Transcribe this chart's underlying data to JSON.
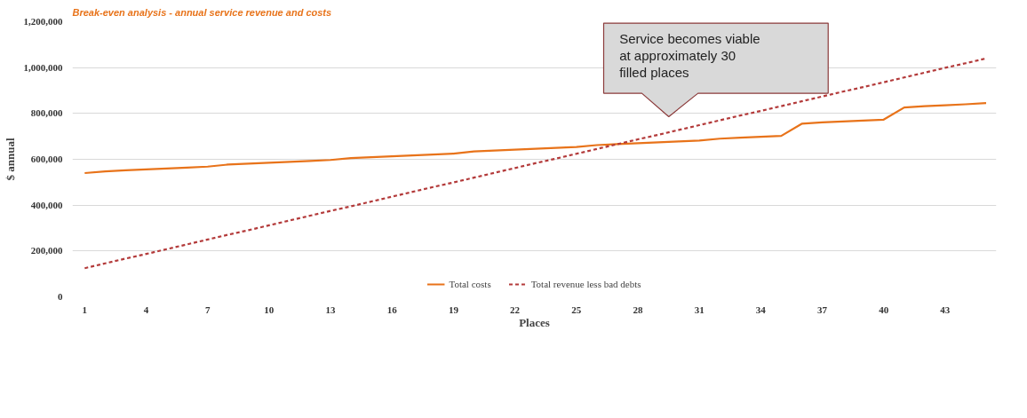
{
  "chart_data": {
    "type": "line",
    "title": "Break-even analysis - annual service revenue and costs",
    "xlabel": "Places",
    "ylabel": "$ annual",
    "categories": [
      "1",
      null,
      null,
      "4",
      null,
      null,
      "7",
      null,
      null,
      "10",
      null,
      null,
      "13",
      null,
      null,
      "16",
      null,
      null,
      "19",
      null,
      null,
      "22",
      null,
      null,
      "25",
      null,
      null,
      "28",
      null,
      null,
      "31",
      null,
      null,
      "34",
      null,
      null,
      "37",
      null,
      null,
      "40",
      null,
      null,
      "43",
      null,
      null
    ],
    "series": [
      {
        "name": "Total costs",
        "color": "#e8731a",
        "line_style": "solid",
        "values": [
          540000,
          547000,
          552000,
          556000,
          560000,
          564000,
          568000,
          577000,
          581000,
          585000,
          589000,
          593000,
          597000,
          605000,
          609000,
          613000,
          617000,
          621000,
          625000,
          634000,
          638000,
          642000,
          646000,
          650000,
          654000,
          662000,
          666000,
          670000,
          674000,
          678000,
          682000,
          690000,
          694000,
          698000,
          702000,
          755000,
          761000,
          765000,
          769000,
          773000,
          826000,
          832000,
          836000,
          840000,
          845000
        ]
      },
      {
        "name": "Total revenue less bad debts",
        "color": "#b33a3a",
        "line_style": "dashed",
        "values": [
          125000,
          146000,
          167000,
          187000,
          208000,
          229000,
          250000,
          271000,
          291000,
          312000,
          333000,
          354000,
          375000,
          395000,
          416000,
          437000,
          458000,
          479000,
          499000,
          520000,
          541000,
          562000,
          583000,
          603000,
          624000,
          645000,
          666000,
          687000,
          707000,
          728000,
          749000,
          770000,
          791000,
          811000,
          832000,
          853000,
          874000,
          895000,
          915000,
          936000,
          957000,
          978000,
          999000,
          1019000,
          1040000
        ]
      }
    ],
    "ylim": [
      0,
      1200000
    ],
    "yticks": [
      {
        "value": 0,
        "label": "0"
      },
      {
        "value": 200000,
        "label": "200,000"
      },
      {
        "value": 400000,
        "label": "400,000"
      },
      {
        "value": 600000,
        "label": "600,000"
      },
      {
        "value": 800000,
        "label": "800,000"
      },
      {
        "value": 1000000,
        "label": "1,000,000"
      },
      {
        "value": 1200000,
        "label": "1,200,000"
      }
    ],
    "grid": "y",
    "legend": "bottom",
    "marker": "none",
    "annotations": [
      "Service becomes viable\nat approximately 30\nfilled places"
    ]
  }
}
